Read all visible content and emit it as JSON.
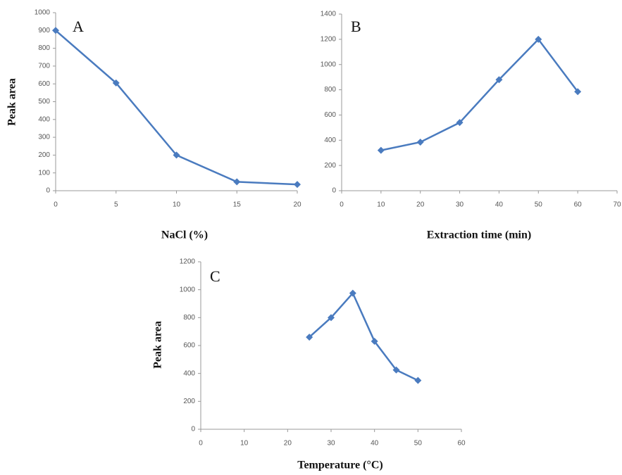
{
  "chart_data": [
    {
      "type": "line",
      "panel_label": "A",
      "ylabel": "Peak area",
      "xlabel": "NaCl (%)",
      "x": [
        0,
        5,
        10,
        15,
        20
      ],
      "series": [
        {
          "color": "#4a7bbf",
          "values": [
            900,
            605,
            200,
            50,
            35
          ]
        }
      ],
      "xlim": [
        0,
        20
      ],
      "xticks": [
        0,
        5,
        10,
        15,
        20
      ],
      "ylim": [
        0,
        1000
      ],
      "yticks": [
        0,
        100,
        200,
        300,
        400,
        500,
        600,
        700,
        800,
        900,
        1000
      ]
    },
    {
      "type": "line",
      "panel_label": "B",
      "xlabel": "Extraction time (min)",
      "x": [
        10,
        20,
        30,
        40,
        50,
        60
      ],
      "series": [
        {
          "color": "#4a7bbf",
          "values": [
            320,
            385,
            540,
            880,
            1200,
            785
          ]
        }
      ],
      "xlim": [
        0,
        70
      ],
      "xticks": [
        0,
        10,
        20,
        30,
        40,
        50,
        60,
        70
      ],
      "ylim": [
        0,
        1400
      ],
      "yticks": [
        0,
        200,
        400,
        600,
        800,
        1000,
        1200,
        1400
      ]
    },
    {
      "type": "line",
      "panel_label": "C",
      "ylabel": "Peak area",
      "xlabel": "Temperature (°C)",
      "x": [
        25,
        30,
        35,
        40,
        45,
        50
      ],
      "series": [
        {
          "color": "#4a7bbf",
          "values": [
            660,
            800,
            975,
            630,
            425,
            350
          ]
        }
      ],
      "xlim": [
        0,
        60
      ],
      "xticks": [
        0,
        10,
        20,
        30,
        40,
        50,
        60
      ],
      "ylim": [
        0,
        1200
      ],
      "yticks": [
        0,
        200,
        400,
        600,
        800,
        1000,
        1200
      ]
    }
  ]
}
